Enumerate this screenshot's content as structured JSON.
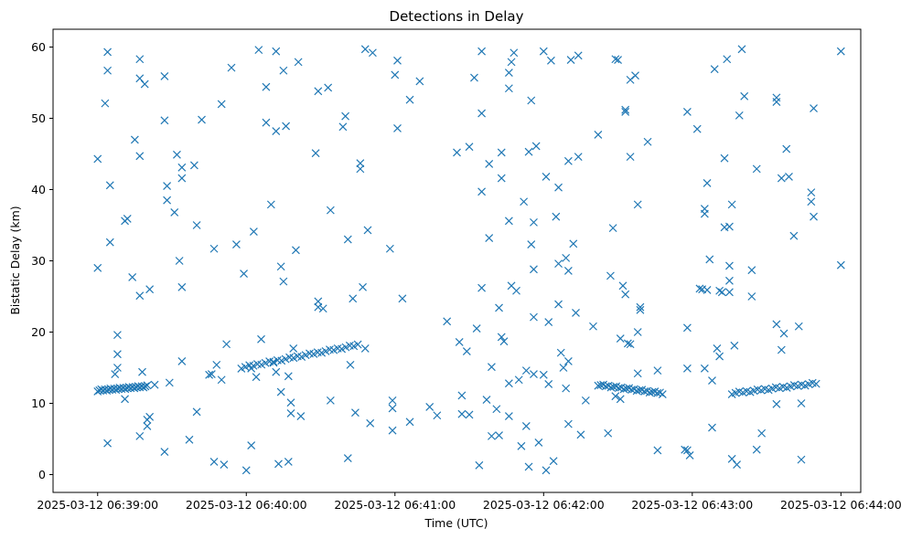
{
  "chart_data": {
    "type": "scatter",
    "title": "Detections in Delay",
    "xlabel": "Time (UTC)",
    "ylabel": "Bistatic Delay (km)",
    "x_units": "seconds after 2025-03-12 06:39:00",
    "xlim": [
      -18,
      308
    ],
    "ylim": [
      -2.5,
      62.5
    ],
    "grid": false,
    "marker": "x",
    "color": "#1f77b4",
    "x_ticks": [
      {
        "value": 0,
        "label": "2025-03-12 06:39:00"
      },
      {
        "value": 60,
        "label": "2025-03-12 06:40:00"
      },
      {
        "value": 120,
        "label": "2025-03-12 06:41:00"
      },
      {
        "value": 180,
        "label": "2025-03-12 06:42:00"
      },
      {
        "value": 240,
        "label": "2025-03-12 06:43:00"
      },
      {
        "value": 300,
        "label": "2025-03-12 06:44:00"
      }
    ],
    "y_ticks": [
      {
        "value": 0,
        "label": "0"
      },
      {
        "value": 10,
        "label": "10"
      },
      {
        "value": 20,
        "label": "20"
      },
      {
        "value": 30,
        "label": "30"
      },
      {
        "value": 40,
        "label": "40"
      },
      {
        "value": 50,
        "label": "50"
      },
      {
        "value": 60,
        "label": "60"
      }
    ],
    "track_segments": [
      {
        "x_start": 0,
        "x_end": 20,
        "y_start": 11.8,
        "y_end": 12.4,
        "count": 28
      },
      {
        "x_start": 58,
        "x_end": 105,
        "y_start": 15.0,
        "y_end": 18.2,
        "count": 30
      },
      {
        "x_start": 202,
        "x_end": 228,
        "y_start": 12.6,
        "y_end": 11.4,
        "count": 26
      },
      {
        "x_start": 256,
        "x_end": 290,
        "y_start": 11.4,
        "y_end": 12.8,
        "count": 24
      }
    ],
    "points": [
      [
        0,
        44.3
      ],
      [
        0,
        29.0
      ],
      [
        3,
        52.1
      ],
      [
        4,
        4.4
      ],
      [
        4,
        56.7
      ],
      [
        4,
        59.3
      ],
      [
        5,
        40.6
      ],
      [
        5,
        32.6
      ],
      [
        7,
        14.1
      ],
      [
        8,
        19.6
      ],
      [
        8,
        16.9
      ],
      [
        8,
        15.0
      ],
      [
        11,
        35.6
      ],
      [
        11,
        10.6
      ],
      [
        12,
        35.9
      ],
      [
        14,
        27.7
      ],
      [
        15,
        47.0
      ],
      [
        17,
        58.3
      ],
      [
        17,
        55.6
      ],
      [
        17,
        44.7
      ],
      [
        17,
        25.1
      ],
      [
        17,
        5.4
      ],
      [
        18,
        14.4
      ],
      [
        19,
        54.8
      ],
      [
        20,
        6.8
      ],
      [
        20,
        7.7
      ],
      [
        21,
        8.1
      ],
      [
        21,
        26.0
      ],
      [
        23,
        12.6
      ],
      [
        27,
        3.2
      ],
      [
        27,
        55.9
      ],
      [
        27,
        49.7
      ],
      [
        28,
        40.5
      ],
      [
        28,
        38.5
      ],
      [
        29,
        12.9
      ],
      [
        31,
        36.8
      ],
      [
        32,
        44.9
      ],
      [
        33,
        30.0
      ],
      [
        34,
        43.1
      ],
      [
        34,
        41.6
      ],
      [
        34,
        26.3
      ],
      [
        34,
        15.9
      ],
      [
        37,
        4.9
      ],
      [
        39,
        43.4
      ],
      [
        40,
        35.0
      ],
      [
        40,
        8.8
      ],
      [
        42,
        49.8
      ],
      [
        45,
        14.0
      ],
      [
        46,
        14.1
      ],
      [
        47,
        31.7
      ],
      [
        47,
        1.8
      ],
      [
        48,
        15.4
      ],
      [
        50,
        52.0
      ],
      [
        50,
        13.3
      ],
      [
        51,
        1.4
      ],
      [
        52,
        18.3
      ],
      [
        54,
        57.1
      ],
      [
        56,
        32.3
      ],
      [
        59,
        28.2
      ],
      [
        60,
        0.6
      ],
      [
        62,
        14.9
      ],
      [
        62,
        4.1
      ],
      [
        63,
        34.1
      ],
      [
        64,
        13.7
      ],
      [
        65,
        59.6
      ],
      [
        66,
        19.0
      ],
      [
        68,
        54.4
      ],
      [
        68,
        49.4
      ],
      [
        70,
        37.9
      ],
      [
        71,
        15.7
      ],
      [
        72,
        14.4
      ],
      [
        72,
        48.2
      ],
      [
        72,
        59.4
      ],
      [
        73,
        1.5
      ],
      [
        74,
        11.6
      ],
      [
        74,
        29.2
      ],
      [
        75,
        27.1
      ],
      [
        75,
        56.7
      ],
      [
        76,
        48.9
      ],
      [
        77,
        1.8
      ],
      [
        77,
        13.8
      ],
      [
        78,
        10.1
      ],
      [
        78,
        8.6
      ],
      [
        79,
        17.7
      ],
      [
        80,
        31.5
      ],
      [
        81,
        57.9
      ],
      [
        82,
        8.2
      ],
      [
        88,
        45.1
      ],
      [
        89,
        53.8
      ],
      [
        89,
        24.3
      ],
      [
        89,
        23.5
      ],
      [
        91,
        23.3
      ],
      [
        93,
        54.3
      ],
      [
        94,
        37.1
      ],
      [
        94,
        10.4
      ],
      [
        99,
        48.8
      ],
      [
        100,
        50.3
      ],
      [
        101,
        33.0
      ],
      [
        101,
        2.3
      ],
      [
        102,
        15.4
      ],
      [
        103,
        24.7
      ],
      [
        104,
        8.7
      ],
      [
        106,
        43.7
      ],
      [
        106,
        42.9
      ],
      [
        107,
        26.3
      ],
      [
        108,
        59.7
      ],
      [
        108,
        17.7
      ],
      [
        109,
        34.3
      ],
      [
        110,
        7.2
      ],
      [
        111,
        59.2
      ],
      [
        118,
        31.7
      ],
      [
        119,
        6.2
      ],
      [
        119,
        9.3
      ],
      [
        119,
        10.4
      ],
      [
        120,
        56.1
      ],
      [
        121,
        48.6
      ],
      [
        121,
        58.1
      ],
      [
        123,
        24.7
      ],
      [
        126,
        52.6
      ],
      [
        126,
        7.4
      ],
      [
        130,
        55.2
      ],
      [
        134,
        9.5
      ],
      [
        137,
        8.3
      ],
      [
        141,
        21.5
      ],
      [
        145,
        45.2
      ],
      [
        146,
        18.6
      ],
      [
        147,
        11.1
      ],
      [
        147,
        8.5
      ],
      [
        149,
        17.3
      ],
      [
        150,
        46.0
      ],
      [
        150,
        8.4
      ],
      [
        152,
        55.7
      ],
      [
        153,
        20.5
      ],
      [
        154,
        1.3
      ],
      [
        155,
        59.4
      ],
      [
        155,
        50.7
      ],
      [
        155,
        39.7
      ],
      [
        155,
        26.2
      ],
      [
        157,
        10.5
      ],
      [
        158,
        33.2
      ],
      [
        158,
        43.6
      ],
      [
        159,
        15.1
      ],
      [
        159,
        5.4
      ],
      [
        161,
        9.2
      ],
      [
        162,
        23.4
      ],
      [
        162,
        5.5
      ],
      [
        163,
        45.2
      ],
      [
        163,
        41.6
      ],
      [
        163,
        19.3
      ],
      [
        164,
        18.7
      ],
      [
        166,
        56.4
      ],
      [
        166,
        54.2
      ],
      [
        166,
        35.6
      ],
      [
        166,
        12.8
      ],
      [
        166,
        8.2
      ],
      [
        167,
        57.9
      ],
      [
        167,
        26.5
      ],
      [
        168,
        59.2
      ],
      [
        169,
        25.8
      ],
      [
        170,
        13.3
      ],
      [
        171,
        4.0
      ],
      [
        172,
        38.3
      ],
      [
        173,
        6.8
      ],
      [
        173,
        14.6
      ],
      [
        174,
        45.3
      ],
      [
        174,
        1.1
      ],
      [
        175,
        32.3
      ],
      [
        175,
        52.5
      ],
      [
        176,
        35.4
      ],
      [
        176,
        22.1
      ],
      [
        176,
        28.8
      ],
      [
        176,
        14.1
      ],
      [
        177,
        46.1
      ],
      [
        178,
        4.5
      ],
      [
        180,
        59.4
      ],
      [
        180,
        14.0
      ],
      [
        181,
        41.8
      ],
      [
        181,
        0.6
      ],
      [
        182,
        21.4
      ],
      [
        182,
        12.7
      ],
      [
        183,
        58.1
      ],
      [
        184,
        1.9
      ],
      [
        185,
        36.2
      ],
      [
        186,
        23.9
      ],
      [
        186,
        29.6
      ],
      [
        186,
        40.3
      ],
      [
        187,
        17.1
      ],
      [
        188,
        15.0
      ],
      [
        189,
        12.1
      ],
      [
        189,
        30.4
      ],
      [
        190,
        28.6
      ],
      [
        190,
        44.0
      ],
      [
        190,
        7.1
      ],
      [
        190,
        15.9
      ],
      [
        191,
        58.2
      ],
      [
        192,
        32.4
      ],
      [
        193,
        22.7
      ],
      [
        194,
        58.8
      ],
      [
        194,
        44.6
      ],
      [
        195,
        5.6
      ],
      [
        197,
        10.4
      ],
      [
        200,
        20.8
      ],
      [
        202,
        47.7
      ],
      [
        206,
        5.8
      ],
      [
        207,
        27.9
      ],
      [
        208,
        34.6
      ],
      [
        209,
        11.0
      ],
      [
        209,
        58.3
      ],
      [
        210,
        58.2
      ],
      [
        211,
        19.1
      ],
      [
        211,
        10.6
      ],
      [
        212,
        26.5
      ],
      [
        213,
        25.3
      ],
      [
        213,
        51.2
      ],
      [
        213,
        50.9
      ],
      [
        214,
        18.4
      ],
      [
        215,
        18.3
      ],
      [
        215,
        55.4
      ],
      [
        215,
        44.6
      ],
      [
        217,
        56.0
      ],
      [
        218,
        37.9
      ],
      [
        218,
        20.0
      ],
      [
        218,
        14.2
      ],
      [
        219,
        23.5
      ],
      [
        219,
        23.1
      ],
      [
        222,
        46.7
      ],
      [
        226,
        14.6
      ],
      [
        226,
        3.4
      ],
      [
        237,
        3.5
      ],
      [
        238,
        50.9
      ],
      [
        238,
        20.6
      ],
      [
        238,
        14.9
      ],
      [
        238,
        3.4
      ],
      [
        239,
        2.7
      ],
      [
        242,
        48.5
      ],
      [
        243,
        26.1
      ],
      [
        244,
        26.0
      ],
      [
        245,
        37.3
      ],
      [
        245,
        36.6
      ],
      [
        245,
        14.9
      ],
      [
        246,
        40.9
      ],
      [
        246,
        25.9
      ],
      [
        247,
        30.2
      ],
      [
        248,
        13.2
      ],
      [
        248,
        6.6
      ],
      [
        249,
        56.9
      ],
      [
        250,
        17.7
      ],
      [
        251,
        16.6
      ],
      [
        251,
        25.8
      ],
      [
        252,
        25.6
      ],
      [
        253,
        44.4
      ],
      [
        253,
        34.7
      ],
      [
        254,
        58.3
      ],
      [
        255,
        29.3
      ],
      [
        255,
        34.8
      ],
      [
        255,
        25.6
      ],
      [
        255,
        27.2
      ],
      [
        256,
        37.9
      ],
      [
        256,
        2.2
      ],
      [
        257,
        18.1
      ],
      [
        258,
        1.4
      ],
      [
        259,
        50.4
      ],
      [
        260,
        59.7
      ],
      [
        261,
        53.1
      ],
      [
        264,
        28.7
      ],
      [
        264,
        25.0
      ],
      [
        266,
        3.5
      ],
      [
        266,
        42.9
      ],
      [
        268,
        5.8
      ],
      [
        274,
        52.9
      ],
      [
        274,
        52.3
      ],
      [
        274,
        21.1
      ],
      [
        274,
        9.9
      ],
      [
        276,
        41.6
      ],
      [
        276,
        17.5
      ],
      [
        277,
        19.8
      ],
      [
        278,
        45.7
      ],
      [
        279,
        41.8
      ],
      [
        281,
        33.5
      ],
      [
        283,
        20.8
      ],
      [
        284,
        2.1
      ],
      [
        284,
        10.0
      ],
      [
        288,
        39.6
      ],
      [
        288,
        38.3
      ],
      [
        289,
        36.2
      ],
      [
        289,
        51.4
      ],
      [
        300,
        59.4
      ],
      [
        300,
        29.4
      ]
    ]
  },
  "ui": {
    "title": "Detections in Delay",
    "xlabel": "Time (UTC)",
    "ylabel": "Bistatic Delay (km)"
  }
}
